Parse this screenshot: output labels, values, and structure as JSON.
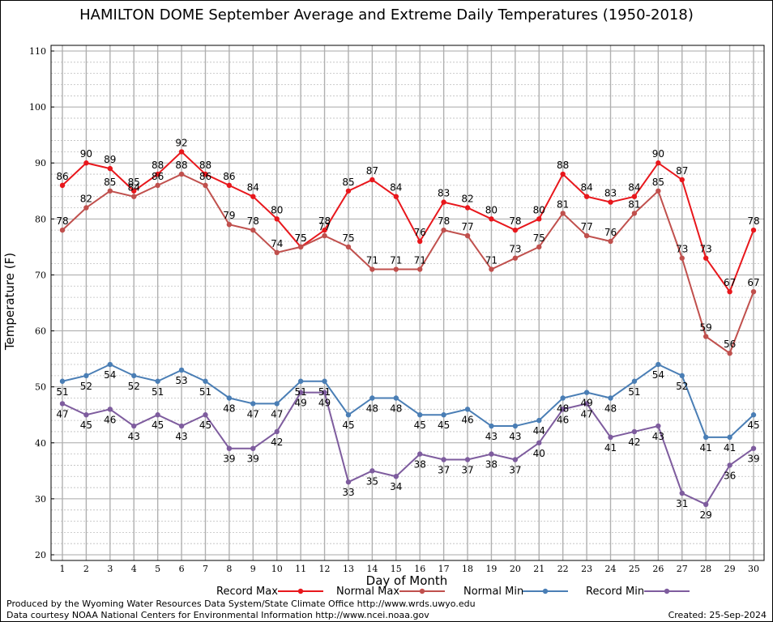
{
  "chart_data": {
    "type": "line",
    "title": "HAMILTON DOME September Average and Extreme Daily Temperatures (1950-2018)",
    "xlabel": "Day of Month",
    "ylabel": "Temperature (F)",
    "ylim": [
      20,
      110
    ],
    "yticks": [
      "20",
      "30",
      "40",
      "50",
      "60",
      "70",
      "80",
      "90",
      "100",
      "110"
    ],
    "categories": [
      "1",
      "2",
      "3",
      "4",
      "5",
      "6",
      "7",
      "8",
      "9",
      "10",
      "11",
      "12",
      "13",
      "14",
      "15",
      "16",
      "17",
      "18",
      "19",
      "20",
      "21",
      "22",
      "23",
      "24",
      "25",
      "26",
      "27",
      "28",
      "29",
      "30"
    ],
    "grid": true,
    "legend_placement": "bottom",
    "series": [
      {
        "name": "Record Max",
        "color": "#e8171c",
        "values": [
          86,
          90,
          89,
          85,
          88,
          92,
          88,
          86,
          84,
          80,
          75,
          78,
          85,
          87,
          84,
          76,
          83,
          82,
          80,
          78,
          80,
          88,
          84,
          83,
          84,
          90,
          87,
          73,
          67,
          78
        ]
      },
      {
        "name": "Normal Max",
        "color": "#c0504d",
        "values": [
          78,
          82,
          85,
          84,
          86,
          88,
          86,
          79,
          78,
          74,
          75,
          77,
          75,
          71,
          71,
          71,
          78,
          77,
          71,
          73,
          75,
          81,
          77,
          76,
          81,
          85,
          73,
          59,
          56,
          67
        ]
      },
      {
        "name": "Normal Min",
        "color": "#4a7eb5",
        "values": [
          51,
          52,
          54,
          52,
          51,
          53,
          51,
          48,
          47,
          47,
          51,
          51,
          45,
          48,
          48,
          45,
          45,
          46,
          43,
          43,
          44,
          48,
          49,
          48,
          51,
          54,
          52,
          41,
          41,
          45
        ]
      },
      {
        "name": "Record Min",
        "color": "#7e5c9e",
        "values": [
          47,
          45,
          46,
          43,
          45,
          43,
          45,
          39,
          39,
          42,
          49,
          49,
          33,
          35,
          34,
          38,
          37,
          37,
          38,
          37,
          40,
          46,
          47,
          41,
          42,
          43,
          31,
          29,
          36,
          39
        ]
      }
    ]
  },
  "footer": {
    "produced_by": "Produced by the Wyoming Water Resources Data System/State Climate Office http://www.wrds.uwyo.edu",
    "data_courtesy": "Data courtesy NOAA National Centers for Environmental Information http://www.ncei.noaa.gov",
    "created": "Created:  25-Sep-2024"
  }
}
